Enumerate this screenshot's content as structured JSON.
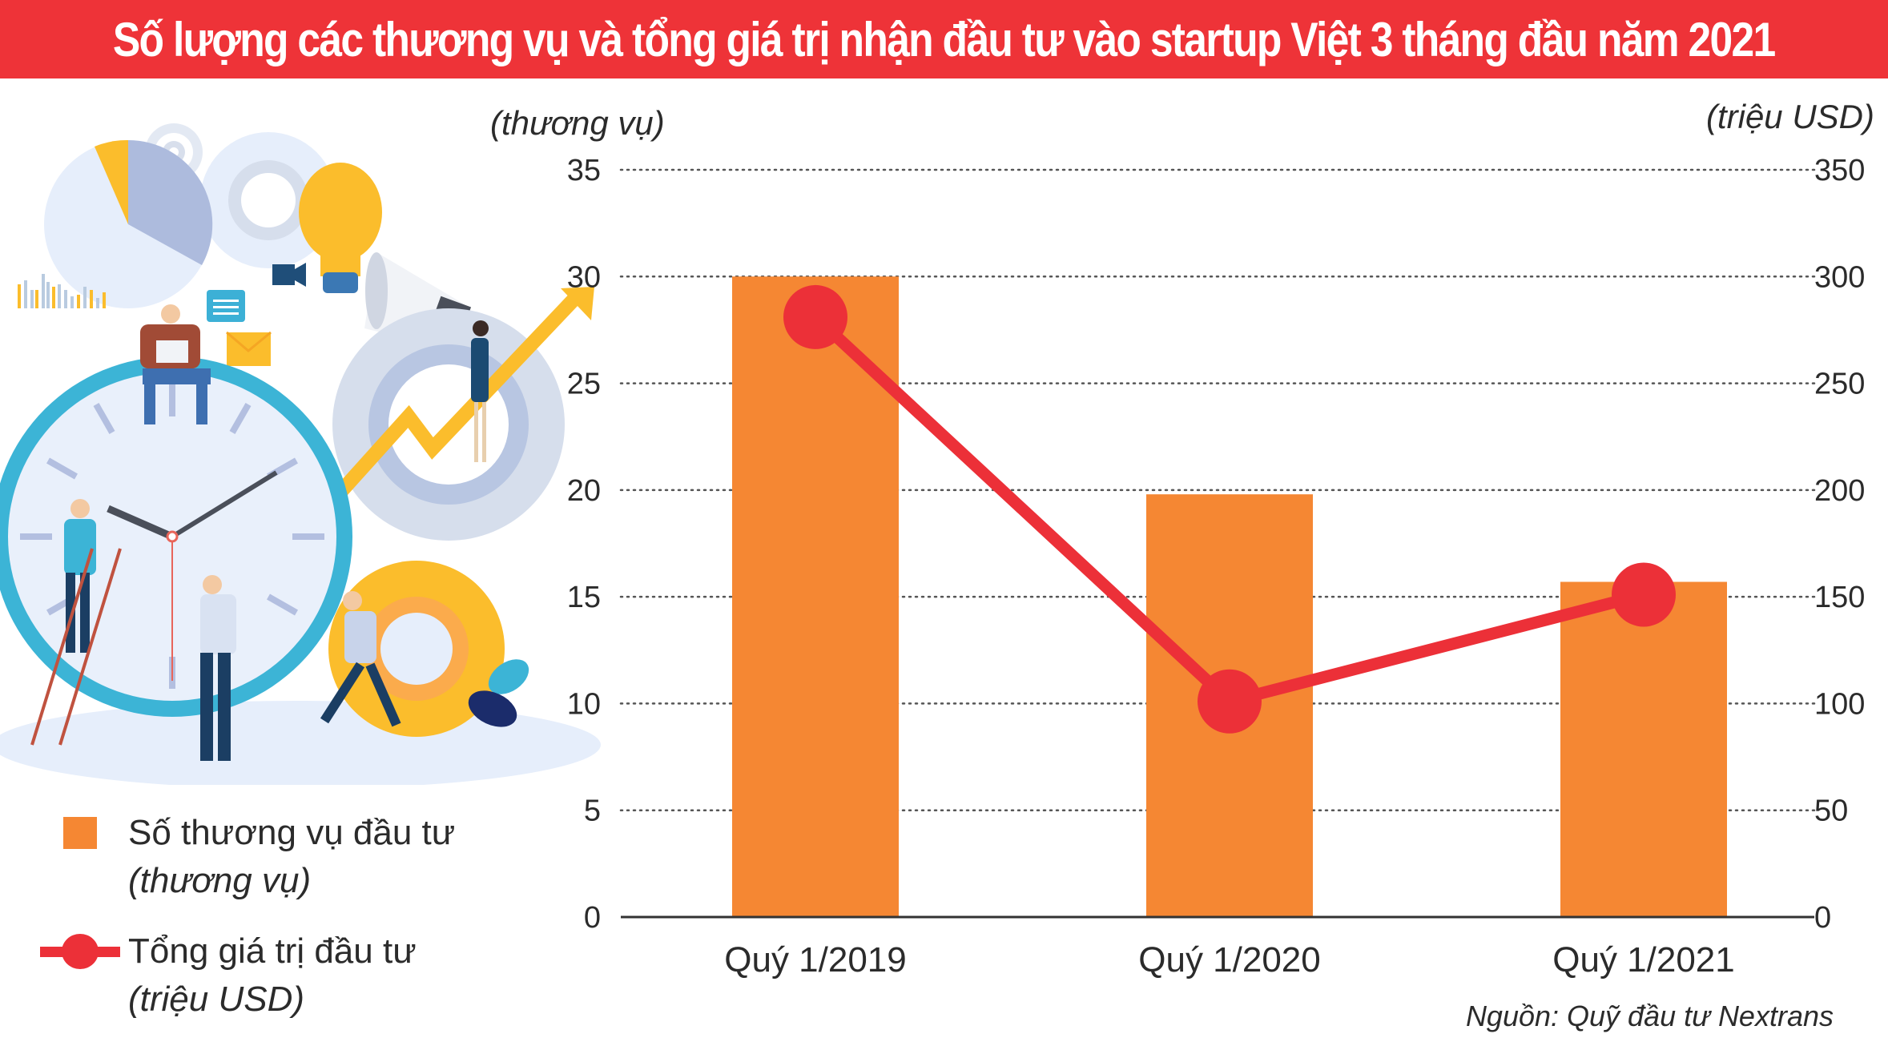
{
  "title": "Số lượng các thương vụ và tổng giá trị  nhận đầu tư vào startup Việt 3 tháng đầu năm 2021",
  "colors": {
    "title_bg": "#ee3338",
    "bar": "#f58733",
    "line": "#ec3038",
    "grid": "#555555",
    "text": "#2b2b2b"
  },
  "axes": {
    "left_unit": "(thương vụ)",
    "right_unit": "(triệu USD)",
    "left_ticks": [
      "0",
      "5",
      "10",
      "15",
      "20",
      "25",
      "30",
      "35"
    ],
    "right_ticks": [
      "0",
      "50",
      "100",
      "150",
      "200",
      "250",
      "300",
      "350"
    ]
  },
  "categories": [
    "Quý 1/2019",
    "Quý 1/2020",
    "Quý 1/2021"
  ],
  "legend": {
    "bar_label": "Số thương vụ đầu tư",
    "bar_unit": "(thương vụ)",
    "line_label": "Tổng giá trị đầu tư",
    "line_unit": "(triệu USD)"
  },
  "source": "Nguồn: Quỹ đầu tư Nextrans",
  "illustration": {
    "description": "Flat business illustration: clock, gears, light bulb, megaphone, pie chart, rising arrow, people"
  },
  "chart_data": {
    "type": "bar",
    "title": "Số lượng các thương vụ và tổng giá trị  nhận đầu tư vào startup Việt 3 tháng đầu năm 2021",
    "categories": [
      "Quý 1/2019",
      "Quý 1/2020",
      "Quý 1/2021"
    ],
    "series": [
      {
        "name": "Số thương vụ đầu tư (thương vụ)",
        "type": "bar",
        "axis": "left",
        "color": "#f58733",
        "values": [
          30,
          19.8,
          15.7
        ]
      },
      {
        "name": "Tổng giá trị đầu tư (triệu USD)",
        "type": "line",
        "axis": "right",
        "color": "#ec3038",
        "values": [
          281,
          101,
          151
        ]
      }
    ],
    "xlabel": "",
    "ylabel_left": "(thương vụ)",
    "ylabel_right": "(triệu USD)",
    "ylim_left": [
      0,
      35
    ],
    "ylim_right": [
      0,
      350
    ],
    "yticks_left": [
      0,
      5,
      10,
      15,
      20,
      25,
      30,
      35
    ],
    "yticks_right": [
      0,
      50,
      100,
      150,
      200,
      250,
      300,
      350
    ],
    "grid": "dotted horizontal",
    "legend_position": "bottom-left",
    "source": "Nguồn: Quỹ đầu tư Nextrans"
  }
}
